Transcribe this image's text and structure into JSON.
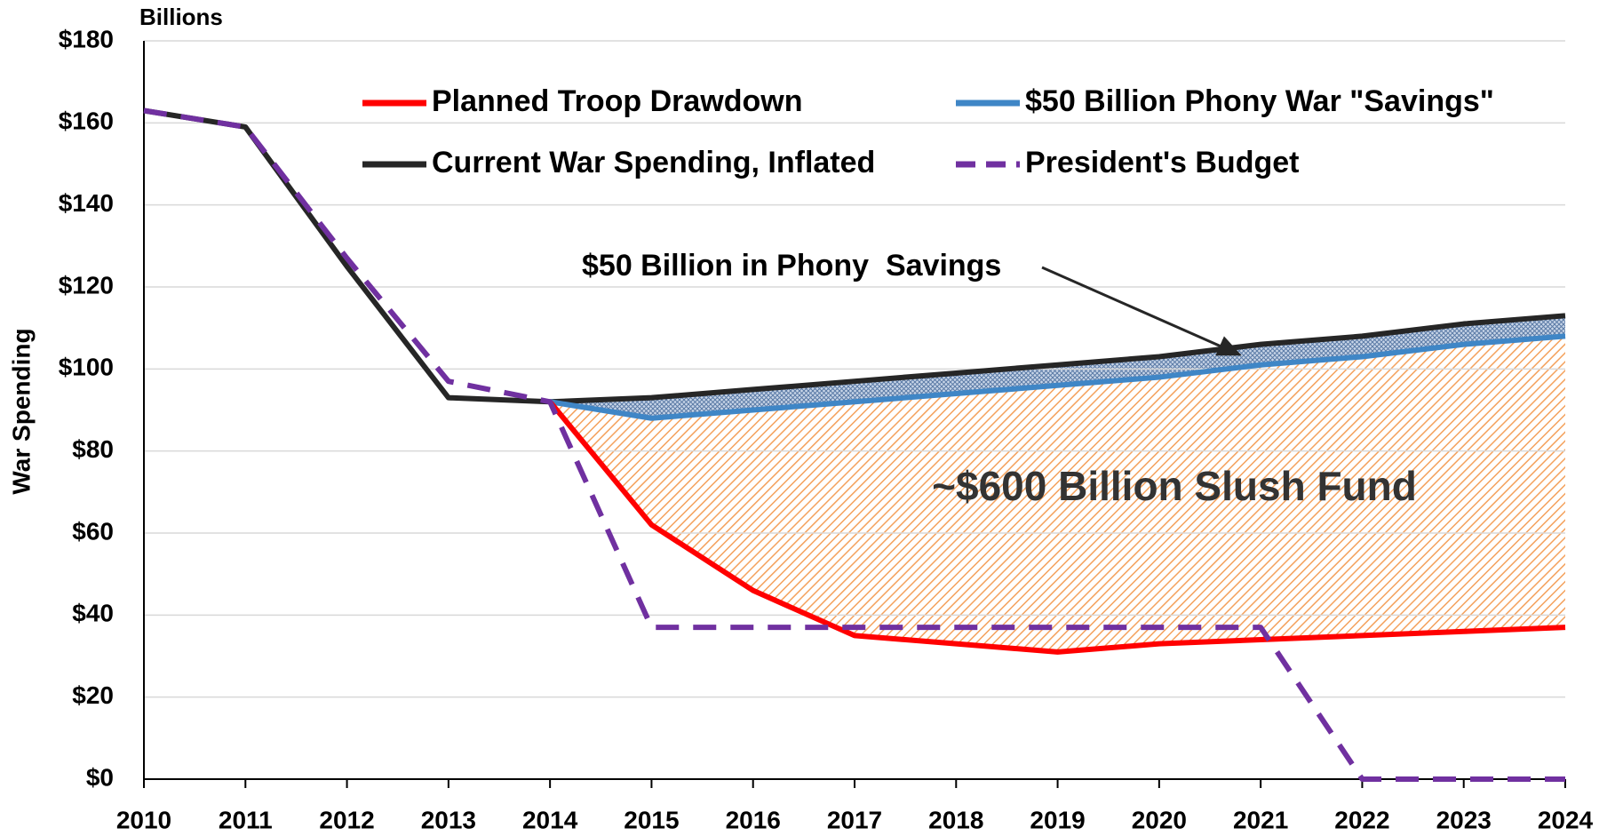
{
  "chart_data": {
    "type": "line",
    "unit_label": "Billions",
    "y_label": "War Spending",
    "x": [
      2010,
      2011,
      2012,
      2013,
      2014,
      2015,
      2016,
      2017,
      2018,
      2019,
      2020,
      2021,
      2022,
      2023,
      2024
    ],
    "xlim": [
      2010,
      2024
    ],
    "xticks": [
      2010,
      2011,
      2012,
      2013,
      2014,
      2015,
      2016,
      2017,
      2018,
      2019,
      2020,
      2021,
      2022,
      2023,
      2024
    ],
    "ylim": [
      0,
      180
    ],
    "yticks": [
      {
        "value": 0,
        "label": "$0"
      },
      {
        "value": 20,
        "label": "$20"
      },
      {
        "value": 40,
        "label": "$40"
      },
      {
        "value": 60,
        "label": "$60"
      },
      {
        "value": 80,
        "label": "$80"
      },
      {
        "value": 100,
        "label": "$100"
      },
      {
        "value": 120,
        "label": "$120"
      },
      {
        "value": 140,
        "label": "$140"
      },
      {
        "value": 160,
        "label": "$160"
      },
      {
        "value": 180,
        "label": "$180"
      }
    ],
    "grid": true,
    "series": [
      {
        "name": "Planned Troop Drawdown",
        "color": "#ff0000",
        "dash": false,
        "values": [
          null,
          null,
          null,
          null,
          92,
          62,
          46,
          35,
          33,
          31,
          33,
          34,
          35,
          36,
          37
        ]
      },
      {
        "name": "$50 Billion Phony War \"Savings\"",
        "color": "#3f86c6",
        "dash": false,
        "values": [
          null,
          null,
          null,
          null,
          92,
          88,
          90,
          92,
          94,
          96,
          98,
          101,
          103,
          106,
          108
        ]
      },
      {
        "name": "Current War Spending, Inflated",
        "color": "#262626",
        "dash": false,
        "values": [
          163,
          159,
          125,
          93,
          92,
          93,
          95,
          97,
          99,
          101,
          103,
          106,
          108,
          111,
          113
        ]
      },
      {
        "name": "President's Budget",
        "color": "#7030a0",
        "dash": true,
        "values": [
          163,
          159,
          127,
          97,
          92,
          37,
          37,
          37,
          37,
          37,
          37,
          37,
          0,
          0,
          0
        ]
      }
    ],
    "annotations": [
      "$50 Billion in Phony  Savings",
      "~$600 Billion Slush Fund"
    ]
  }
}
